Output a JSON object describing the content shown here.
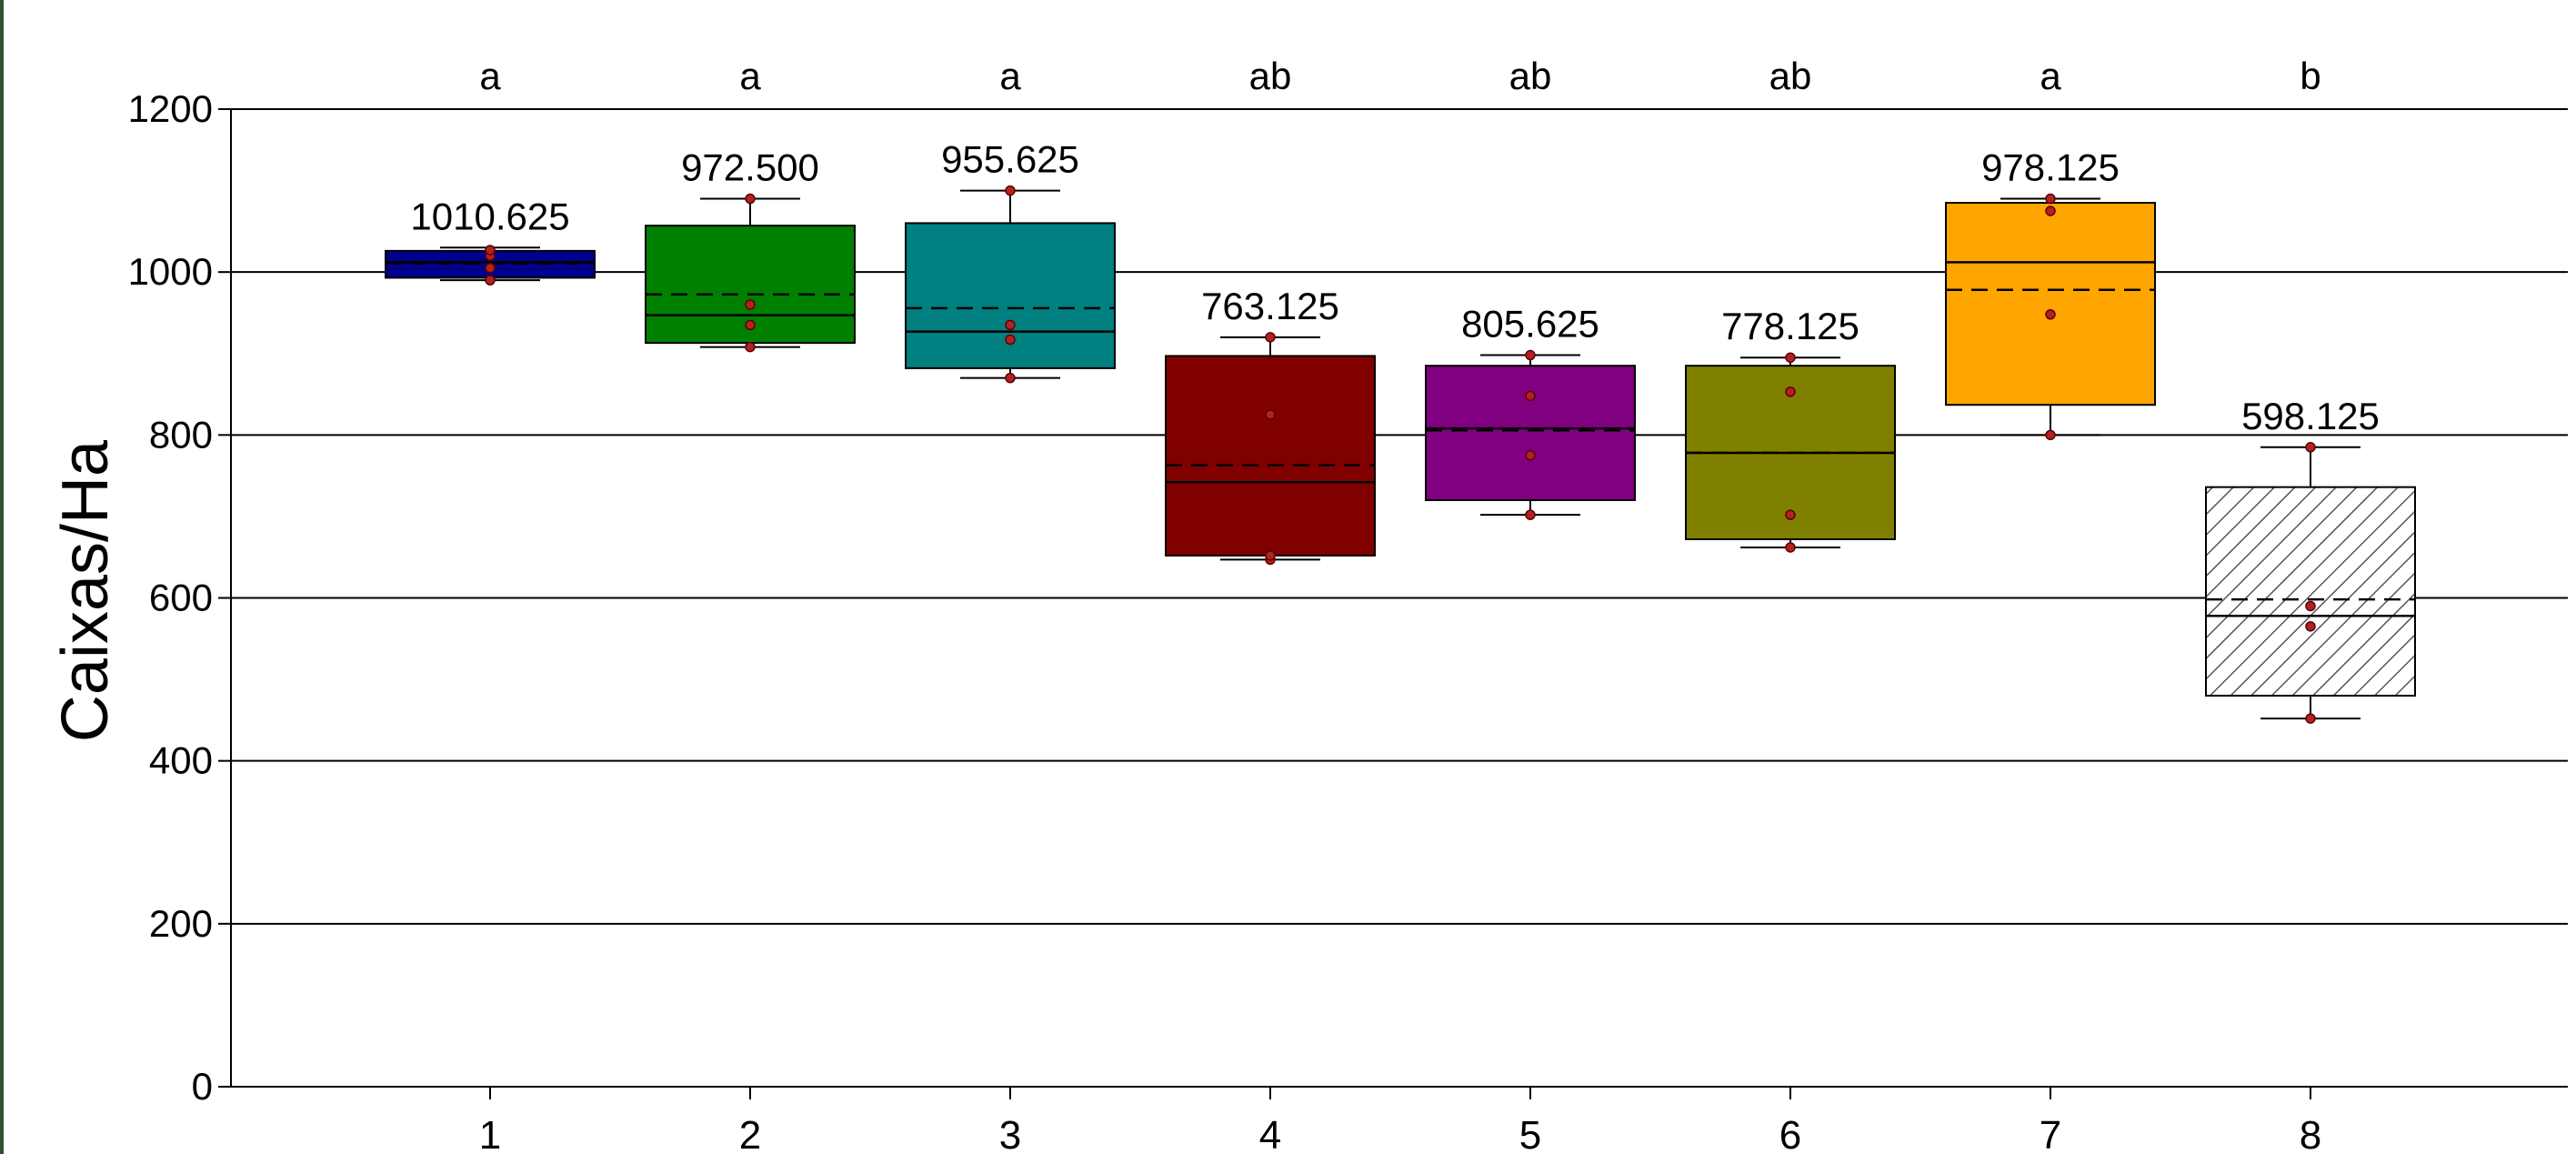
{
  "chart_data": {
    "type": "box",
    "title": "",
    "xlabel": "",
    "ylabel": "Caixas/Ha",
    "ylim": [
      0,
      1200
    ],
    "y_ticks": [
      0,
      200,
      400,
      600,
      800,
      1000,
      1200
    ],
    "grid": true,
    "legend": "none",
    "categories": [
      "1",
      "2",
      "3",
      "4",
      "5",
      "6",
      "7",
      "8"
    ],
    "boxes": [
      {
        "category": "1",
        "group_letter": "a",
        "mean_label": "1010.625",
        "mean": 1010.625,
        "median": 1012,
        "q1": 993,
        "q3": 1026,
        "whisker_low": 990,
        "whisker_high": 1030,
        "points": [
          990,
          1005,
          1020,
          1027
        ],
        "color": "#00008B",
        "pattern": "solid"
      },
      {
        "category": "2",
        "group_letter": "a",
        "mean_label": "972.500",
        "mean": 972.5,
        "median": 947,
        "q1": 913,
        "q3": 1057,
        "whisker_low": 908,
        "whisker_high": 1090,
        "points": [
          908,
          935,
          960,
          1090
        ],
        "color": "#008000",
        "pattern": "solid"
      },
      {
        "category": "3",
        "group_letter": "a",
        "mean_label": "955.625",
        "mean": 955.625,
        "median": 927,
        "q1": 882,
        "q3": 1060,
        "whisker_low": 870,
        "whisker_high": 1100,
        "points": [
          870,
          917,
          935,
          1100
        ],
        "color": "#008080",
        "pattern": "solid"
      },
      {
        "category": "4",
        "group_letter": "ab",
        "mean_label": "763.125",
        "mean": 763.125,
        "median": 742,
        "q1": 652,
        "q3": 897,
        "whisker_low": 647,
        "whisker_high": 920,
        "points": [
          647,
          652,
          825,
          920
        ],
        "color": "#800000",
        "pattern": "solid"
      },
      {
        "category": "5",
        "group_letter": "ab",
        "mean_label": "805.625",
        "mean": 805.625,
        "median": 808,
        "q1": 720,
        "q3": 885,
        "whisker_low": 702,
        "whisker_high": 898,
        "points": [
          702,
          775,
          848,
          898
        ],
        "color": "#800080",
        "pattern": "solid"
      },
      {
        "category": "6",
        "group_letter": "ab",
        "mean_label": "778.125",
        "mean": 778.125,
        "median": 778,
        "q1": 672,
        "q3": 885,
        "whisker_low": 662,
        "whisker_high": 895,
        "points": [
          662,
          702,
          853,
          895
        ],
        "color": "#808000",
        "pattern": "solid"
      },
      {
        "category": "7",
        "group_letter": "a",
        "mean_label": "978.125",
        "mean": 978.125,
        "median": 1012,
        "q1": 837,
        "q3": 1085,
        "whisker_low": 800,
        "whisker_high": 1090,
        "points": [
          800,
          948,
          1075,
          1090
        ],
        "color": "#FFA500",
        "pattern": "solid"
      },
      {
        "category": "8",
        "group_letter": "b",
        "mean_label": "598.125",
        "mean": 598.125,
        "median": 578,
        "q1": 480,
        "q3": 736,
        "whisker_low": 452,
        "whisker_high": 785,
        "points": [
          452,
          565,
          590,
          785
        ],
        "color": "#ffffff",
        "pattern": "hatched"
      }
    ]
  },
  "colors": {
    "grid": "#000000",
    "point_fill": "#b22222",
    "hatch": "#555555",
    "frame_border": "#2f4f2f"
  }
}
